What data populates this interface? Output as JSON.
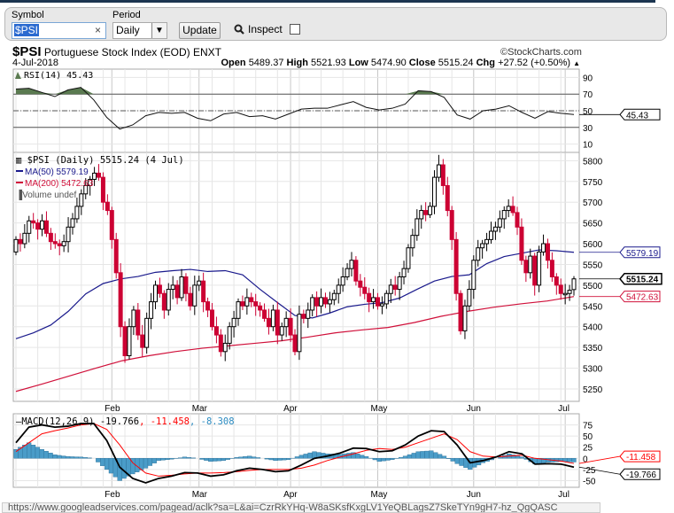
{
  "toolbar": {
    "symbol_label": "Symbol",
    "symbol_value": "$PSI",
    "clear_icon": "×",
    "period_label": "Period",
    "period_value": "Daily",
    "update_label": "Update",
    "inspect_label": "Inspect",
    "inspect_checked": false
  },
  "header": {
    "symbol": "$PSI",
    "name": "Portuguese Stock Index (EOD)",
    "exchange": "ENXT",
    "copyright": "©StockCharts.com",
    "date": "4-Jul-2018",
    "open_label": "Open",
    "open": "5489.37",
    "high_label": "High",
    "high": "5521.93",
    "low_label": "Low",
    "low": "5474.90",
    "close_label": "Close",
    "close": "5515.24",
    "chg_label": "Chg",
    "chg": "+27.52 (+0.50%)",
    "chg_arrow": "▲"
  },
  "colors": {
    "up_border": "#000000",
    "down_fill": "#cc0033",
    "ma50": "#1a1a8c",
    "ma200": "#d0103a",
    "macd": "#000000",
    "signal": "#ff0000",
    "hist": "#4a9cc8",
    "rsi_fill": "#5a7a50"
  },
  "chart_data": [
    {
      "type": "line",
      "panel": "rsi",
      "legend": "RSI(14) 45.43",
      "current_label": "45.43",
      "yticks": [
        90,
        70,
        50,
        30,
        10
      ],
      "ylim": [
        0,
        100
      ],
      "overbought": 70,
      "oversold": 30,
      "values": [
        76,
        77,
        72,
        67,
        75,
        78,
        63,
        42,
        28,
        33,
        44,
        48,
        47,
        48,
        41,
        38,
        46,
        48,
        43,
        44,
        40,
        46,
        52,
        53,
        53,
        57,
        61,
        54,
        51,
        53,
        58,
        74,
        73,
        66,
        45,
        40,
        50,
        52,
        56,
        48,
        41,
        49,
        47,
        45.43
      ]
    },
    {
      "type": "candlestick",
      "panel": "price",
      "legend": "$PSI (Daily) 5515.24 (4 Jul)",
      "ma50_legend": "MA(50) 5579.19",
      "ma200_legend": "MA(200) 5472.63",
      "volume_legend": "Volume undef",
      "ylim": [
        5220,
        5820
      ],
      "yticks": [
        5800,
        5750,
        5700,
        5650,
        5600,
        5550,
        5500,
        5450,
        5400,
        5350,
        5300,
        5250
      ],
      "last_close_label": "5515.24",
      "ma50_label": "5579.19",
      "ma200_label": "5472.63",
      "months": [
        {
          "label": "Feb",
          "index": 22
        },
        {
          "label": "Mar",
          "index": 42
        },
        {
          "label": "Apr",
          "index": 63
        },
        {
          "label": "May",
          "index": 83
        },
        {
          "label": "Jun",
          "index": 105
        },
        {
          "label": "Jul",
          "index": 126
        }
      ],
      "closes": {
        "Jan": [
          5610,
          5600,
          5625,
          5655,
          5650,
          5635,
          5655,
          5625,
          5605,
          5600,
          5595,
          5605,
          5640,
          5660,
          5690,
          5720,
          5740,
          5755,
          5770,
          5760,
          5700,
          5680
        ],
        "Feb": [
          5610,
          5530,
          5400,
          5330,
          5400,
          5440,
          5380,
          5350,
          5420,
          5460,
          5500,
          5480,
          5440,
          5490,
          5500,
          5470,
          5520,
          5480,
          5450,
          5500
        ],
        "Mar": [
          5510,
          5460,
          5440,
          5400,
          5380,
          5340,
          5360,
          5400,
          5420,
          5460,
          5450,
          5470,
          5460,
          5450,
          5440,
          5420,
          5400,
          5440,
          5380,
          5400,
          5420
        ],
        "Apr": [
          5380,
          5340,
          5430,
          5420,
          5440,
          5470,
          5450,
          5470,
          5455,
          5465,
          5480,
          5500,
          5520,
          5540,
          5560,
          5510,
          5495,
          5480,
          5460,
          5470
        ],
        "May": [
          5450,
          5455,
          5480,
          5500,
          5490,
          5520,
          5540,
          5590,
          5620,
          5660,
          5680,
          5670,
          5690,
          5760,
          5790,
          5740,
          5680,
          5610,
          5480,
          5390,
          5450,
          5490
        ],
        "Jun": [
          5560,
          5590,
          5600,
          5610,
          5630,
          5640,
          5660,
          5680,
          5690,
          5675,
          5640,
          5560,
          5530,
          5570,
          5500,
          5580,
          5600,
          5560,
          5520,
          5500,
          5480
        ],
        "Jul": [
          5480,
          5487.72,
          5515.24
        ]
      },
      "last_ohlc": [
        5489.37,
        5521.93,
        5474.9,
        5515.24
      ],
      "ma50": [
        5371,
        5385,
        5404,
        5437,
        5479,
        5504,
        5515,
        5521,
        5531,
        5535,
        5538,
        5533,
        5535,
        5525,
        5490,
        5458,
        5427,
        5421,
        5433,
        5448,
        5454,
        5458,
        5469,
        5490,
        5510,
        5521,
        5525,
        5552,
        5569,
        5577,
        5585,
        5583,
        5579.19
      ],
      "ma200": [
        5244,
        5262,
        5281,
        5300,
        5318,
        5330,
        5340,
        5348,
        5354,
        5360,
        5366,
        5375,
        5385,
        5392,
        5398,
        5410,
        5425,
        5437,
        5447,
        5455,
        5462,
        5472.63
      ]
    },
    {
      "type": "line",
      "panel": "macd",
      "legend_prefix": "MACD(12,26,9)",
      "legend_macd": "-19.766",
      "legend_signal": "-11.458",
      "legend_hist": "-8.308",
      "macd_label": "-19.766",
      "signal_label": "-11.458",
      "ylim": [
        -65,
        100
      ],
      "yticks": [
        75,
        50,
        25,
        0,
        -25,
        -50
      ],
      "macd": [
        35,
        70,
        75,
        70,
        72,
        78,
        78,
        40,
        -20,
        -45,
        -55,
        -45,
        -40,
        -32,
        -33,
        -40,
        -37,
        -28,
        -22,
        -25,
        -30,
        -28,
        -15,
        0,
        5,
        12,
        23,
        22,
        15,
        17,
        30,
        50,
        62,
        60,
        30,
        -10,
        -5,
        3,
        15,
        10,
        -13,
        -12,
        -13,
        -19.766
      ],
      "signal": [
        15,
        35,
        55,
        62,
        68,
        75,
        78,
        65,
        30,
        -10,
        -33,
        -40,
        -38,
        -35,
        -33,
        -33,
        -32,
        -30,
        -27,
        -25,
        -25,
        -25,
        -22,
        -15,
        -5,
        3,
        10,
        18,
        22,
        20,
        25,
        35,
        45,
        55,
        42,
        15,
        5,
        3,
        5,
        7,
        0,
        -3,
        -6,
        -11.458
      ]
    }
  ],
  "status_bar": {
    "url": "https://www.googleadservices.com/pagead/aclk?sa=L&ai=CzrRkYHq-W8aSKsfKxgLV1YeQBLagsZ7SkeTYn9gH7-hz_QgQASC"
  }
}
